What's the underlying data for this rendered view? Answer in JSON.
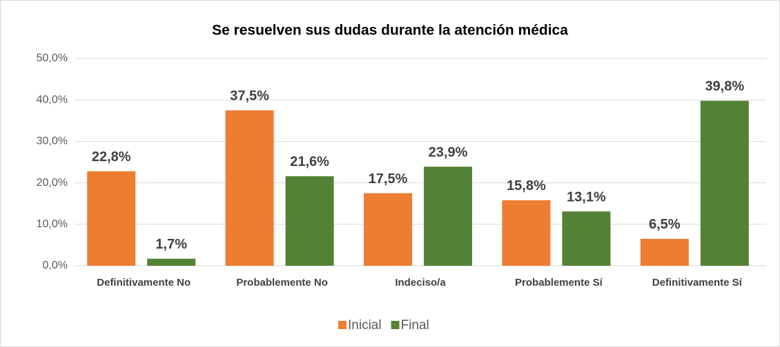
{
  "chart_data": {
    "type": "bar",
    "title": "Se resuelven sus dudas durante la atención médica",
    "categories": [
      "Definitivamente No",
      "Probablemente No",
      "Indeciso/a",
      "Probablemente Sí",
      "Definitivamente Sí"
    ],
    "series": [
      {
        "name": "Inicial",
        "color": "#ed7d31",
        "values": [
          22.8,
          37.5,
          17.5,
          15.8,
          6.5
        ],
        "value_labels": [
          "22,8%",
          "37,5%",
          "17,5%",
          "15,8%",
          "6,5%"
        ]
      },
      {
        "name": "Final",
        "color": "#548235",
        "values": [
          1.7,
          21.6,
          23.9,
          13.1,
          39.8
        ],
        "value_labels": [
          "1,7%",
          "21,6%",
          "23,9%",
          "13,1%",
          "39,8%"
        ]
      }
    ],
    "ylim": [
      0,
      50
    ],
    "yticks": [
      {
        "value": 0,
        "label": "0,0%"
      },
      {
        "value": 10,
        "label": "10,0%"
      },
      {
        "value": 20,
        "label": "20,0%"
      },
      {
        "value": 30,
        "label": "30,0%"
      },
      {
        "value": 40,
        "label": "40,0%"
      },
      {
        "value": 50,
        "label": "50,0%"
      }
    ],
    "grid": true,
    "legend": "bottom"
  }
}
